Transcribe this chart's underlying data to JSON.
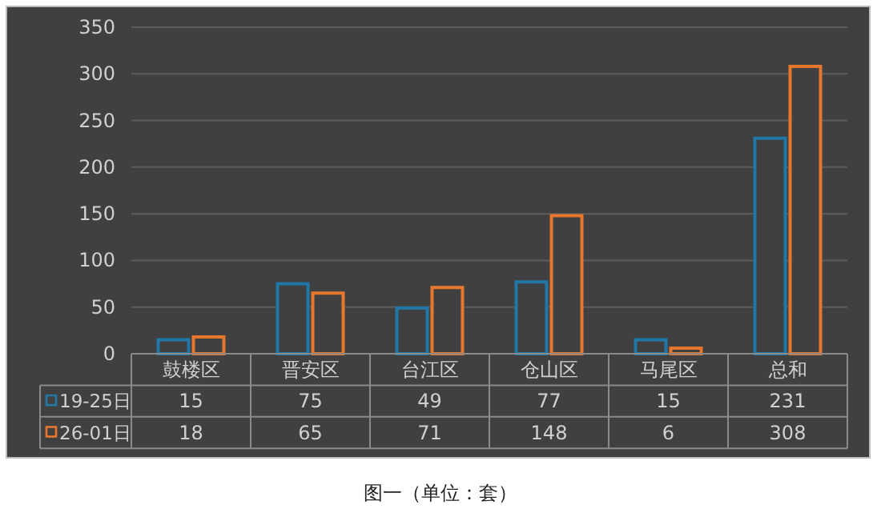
{
  "chart_data": {
    "type": "bar",
    "title": "图一（单位：套）",
    "categories": [
      "鼓楼区",
      "晋安区",
      "台江区",
      "仓山区",
      "马尾区",
      "总和"
    ],
    "series": [
      {
        "name": "19-25日",
        "color": "#2177a8",
        "values": [
          15,
          75,
          49,
          77,
          15,
          231
        ]
      },
      {
        "name": "26-01日",
        "color": "#e8772e",
        "values": [
          18,
          65,
          71,
          148,
          6,
          308
        ]
      }
    ],
    "ylim": [
      0,
      350
    ],
    "yticks": [
      0,
      50,
      100,
      150,
      200,
      250,
      300,
      350
    ],
    "grid": "y",
    "data_labels": true,
    "legend": "bottom"
  }
}
